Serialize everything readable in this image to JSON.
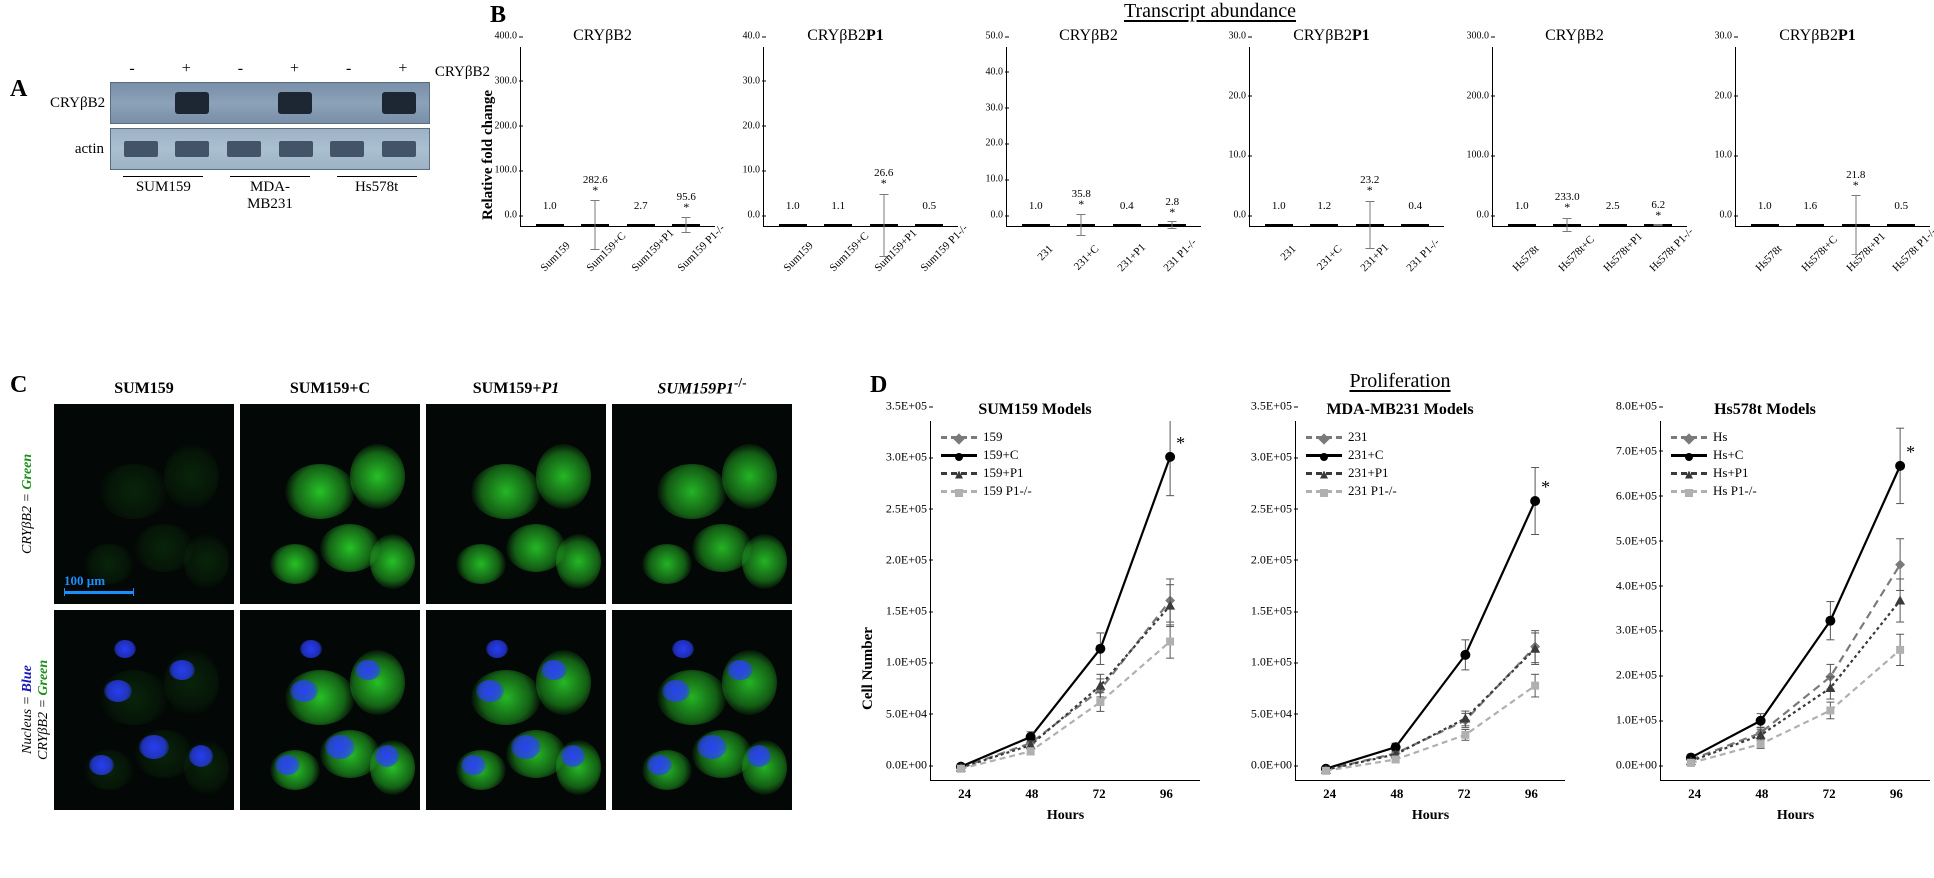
{
  "panelA": {
    "label": "A",
    "protein_label": "CRYβB2",
    "actin_label": "actin",
    "side_label": "CRYβB2",
    "symbols": [
      "-",
      "+",
      "-",
      "+",
      "-",
      "+"
    ],
    "samples": [
      "SUM159",
      "MDA-MB231",
      "Hs578t"
    ],
    "band_intensity": [
      "faint",
      "strong",
      "faint",
      "strong",
      "faint",
      "strong"
    ],
    "colors": {
      "membrane": "#8ba2b8",
      "band": "#1d2733",
      "actin_membrane": "#aabfd0"
    }
  },
  "panelB": {
    "label": "B",
    "title": "Transcript abundance",
    "y_axis_label": "Relative fold change",
    "label_fontsize": 15,
    "tick_fontsize": 10,
    "xlabel_fontsize": 11,
    "charts": [
      {
        "title": "CRYβB2",
        "ymax": 400,
        "ystep": 100,
        "color_scheme": "dark",
        "labels": [
          "Sum159",
          "Sum159+C",
          "Sum159+P1",
          "Sum159 P1-/-"
        ],
        "values": [
          1.0,
          282.6,
          2.7,
          95.6
        ],
        "errors": [
          0,
          55,
          0,
          18
        ],
        "stars": [
          false,
          true,
          false,
          true
        ]
      },
      {
        "title": "CRYβB2P1",
        "title_bold_suffix": "P1",
        "ymax": 40,
        "ystep": 10,
        "color_scheme": "light",
        "labels": [
          "Sum159",
          "Sum159+C",
          "Sum159+P1",
          "Sum159 P1-/-"
        ],
        "values": [
          1.0,
          1.1,
          26.6,
          0.5
        ],
        "errors": [
          0,
          0,
          7,
          0
        ],
        "stars": [
          false,
          false,
          true,
          false
        ]
      },
      {
        "title": "CRYβB2",
        "ymax": 50,
        "ystep": 10,
        "color_scheme": "dark",
        "labels": [
          "231",
          "231+C",
          "231+P1",
          "231 P1-/-"
        ],
        "values": [
          1.0,
          35.8,
          0.4,
          2.8
        ],
        "errors": [
          0,
          3,
          0,
          1
        ],
        "stars": [
          false,
          true,
          false,
          true
        ]
      },
      {
        "title": "CRYβB2P1",
        "title_bold_suffix": "P1",
        "ymax": 30,
        "ystep": 10,
        "color_scheme": "light",
        "labels": [
          "231",
          "231+C",
          "231+P1",
          "231 P1-/-"
        ],
        "values": [
          1.0,
          1.2,
          23.2,
          0.4
        ],
        "errors": [
          0,
          0,
          4,
          0
        ],
        "stars": [
          false,
          false,
          true,
          false
        ]
      },
      {
        "title": "CRYβB2",
        "ymax": 300,
        "ystep": 100,
        "color_scheme": "dark",
        "labels": [
          "Hs578t",
          "Hs578t+C",
          "Hs578t+P1",
          "Hs578t P1-/-"
        ],
        "values": [
          1.0,
          233.0,
          2.5,
          6.2
        ],
        "errors": [
          0,
          12,
          0,
          2
        ],
        "stars": [
          false,
          true,
          false,
          true
        ]
      },
      {
        "title": "CRYβB2P1",
        "title_bold_suffix": "P1",
        "ymax": 30,
        "ystep": 10,
        "color_scheme": "light",
        "labels": [
          "Hs578t",
          "Hs578t+C",
          "Hs578t+P1",
          "Hs578t P1-/-"
        ],
        "values": [
          1.0,
          1.6,
          21.8,
          0.5
        ],
        "errors": [
          0,
          0,
          5,
          0
        ],
        "stars": [
          false,
          false,
          true,
          false
        ]
      }
    ],
    "colors": {
      "dark": "#1a1a1a",
      "light": "#b5b5b5",
      "error": "#7a7a7a"
    }
  },
  "panelC": {
    "label": "C",
    "columns": [
      "SUM159",
      "SUM159+C",
      "SUM159+P1",
      "SUM159P1-/-"
    ],
    "column_italic": [
      false,
      false,
      true,
      true
    ],
    "row_labels": [
      {
        "parts": [
          [
            "CRYβB2",
            "#000"
          ],
          [
            " = ",
            "#000"
          ],
          [
            "Green",
            "#1a8f1a"
          ]
        ]
      },
      {
        "parts": [
          [
            "Nucleus",
            "#000"
          ],
          [
            " = ",
            "#000"
          ],
          [
            "Blue",
            "#1818bb"
          ],
          [
            "\n",
            "#000"
          ],
          [
            "CRYβB2",
            "#000"
          ],
          [
            " = ",
            "#000"
          ],
          [
            "Green",
            "#1a8f1a"
          ]
        ]
      }
    ],
    "scalebar_text": "100 µm",
    "green_intensity_by_col": [
      0.15,
      0.95,
      0.9,
      0.88
    ],
    "background_color": "#030705",
    "green_color": "#2de02d",
    "blue_color": "#2a3fff"
  },
  "panelD": {
    "label": "D",
    "title": "Proliferation",
    "y_axis_label": "Cell Number",
    "x_axis_label": "Hours",
    "x_values": [
      24,
      48,
      72,
      96
    ],
    "charts": [
      {
        "title": "SUM159 Models",
        "ymax": 350000.0,
        "ystep": 50000.0,
        "legend": [
          "159",
          "159+C",
          "159+P1",
          "159 P1-/-"
        ],
        "series": [
          {
            "name": "159",
            "color": "#7a7a7a",
            "dash": "8,5",
            "marker": "diamond",
            "y": [
              12000.0,
              36000.0,
              88000.0,
              175000.0
            ]
          },
          {
            "name": "159+C",
            "color": "#000000",
            "dash": "",
            "marker": "circle",
            "y": [
              13000.0,
              42000.0,
              128000.0,
              315000.0
            ]
          },
          {
            "name": "159+P1",
            "color": "#3a3a3a",
            "dash": "3,3",
            "marker": "triangle",
            "y": [
              12000.0,
              34000.0,
              92000.0,
              170000.0
            ]
          },
          {
            "name": "159 P1-/-",
            "color": "#b0b0b0",
            "dash": "6,4",
            "marker": "square",
            "y": [
              11000.0,
              28000.0,
              76000.0,
              135000.0
            ]
          }
        ],
        "star_on_series": 1
      },
      {
        "title": "MDA-MB231 Models",
        "ymax": 350000.0,
        "ystep": 50000.0,
        "legend": [
          "231",
          "231+C",
          "231+P1",
          "231 P1-/-"
        ],
        "series": [
          {
            "name": "231",
            "color": "#7a7a7a",
            "dash": "8,5",
            "marker": "diamond",
            "y": [
              10000.0,
              26000.0,
              58000.0,
              130000.0
            ]
          },
          {
            "name": "231+C",
            "color": "#000000",
            "dash": "",
            "marker": "circle",
            "y": [
              11000.0,
              32000.0,
              122000.0,
              272000.0
            ]
          },
          {
            "name": "231+P1",
            "color": "#3a3a3a",
            "dash": "3,3",
            "marker": "triangle",
            "y": [
              10000.0,
              25000.0,
              60000.0,
              128000.0
            ]
          },
          {
            "name": "231 P1-/-",
            "color": "#b0b0b0",
            "dash": "6,4",
            "marker": "square",
            "y": [
              9000.0,
              20000.0,
              44000.0,
              92000.0
            ]
          }
        ],
        "star_on_series": 1
      },
      {
        "title": "Hs578t Models",
        "ymax": 800000.0,
        "ystep": 100000.0,
        "legend": [
          "Hs",
          "Hs+C",
          "Hs+P1",
          "Hs P1-/-"
        ],
        "series": [
          {
            "name": "Hs",
            "color": "#7a7a7a",
            "dash": "8,5",
            "marker": "diamond",
            "y": [
              45000.0,
              105000.0,
              230000.0,
              480000.0
            ]
          },
          {
            "name": "Hs+C",
            "color": "#000000",
            "dash": "",
            "marker": "circle",
            "y": [
              50000.0,
              132000.0,
              355000.0,
              700000.0
            ]
          },
          {
            "name": "Hs+P1",
            "color": "#3a3a3a",
            "dash": "3,3",
            "marker": "triangle",
            "y": [
              42000.0,
              100000.0,
              205000.0,
              400000.0
            ]
          },
          {
            "name": "Hs P1-/-",
            "color": "#b0b0b0",
            "dash": "6,4",
            "marker": "square",
            "y": [
              38000.0,
              80000.0,
              155000.0,
              290000.0
            ]
          }
        ],
        "star_on_series": 1
      }
    ]
  }
}
